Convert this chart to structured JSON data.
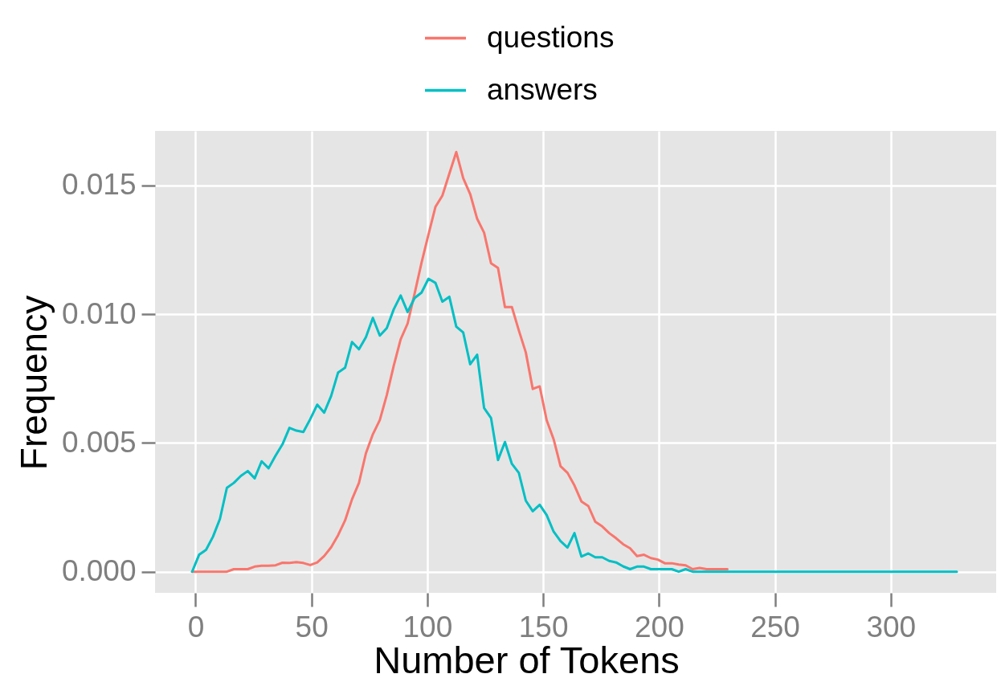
{
  "chart_data": {
    "type": "line",
    "xlabel": "Number of Tokens",
    "ylabel": "Frequency",
    "xlim": [
      -17.5,
      345.5
    ],
    "ylim": [
      -0.00082,
      0.01712
    ],
    "xticks": [
      0,
      50,
      100,
      150,
      200,
      250,
      300
    ],
    "yticks": [
      {
        "value": 0,
        "label": "0.000"
      },
      0.005,
      {
        "value": 0.01,
        "label": "0.010"
      },
      0.015
    ],
    "grid": true,
    "legend": "top",
    "series": [
      {
        "name": "questions",
        "color": "#f8766d",
        "x": [
          -1.5,
          1.5,
          4.5,
          7.5,
          10.5,
          13.5,
          16.5,
          19.5,
          22.5,
          25.5,
          28.5,
          31.5,
          34.5,
          37.5,
          40.5,
          43.5,
          46.5,
          49.5,
          52.5,
          55.5,
          58.5,
          61.5,
          64.5,
          67.5,
          70.5,
          73.5,
          76.5,
          79.5,
          82.5,
          85.5,
          88.5,
          91.5,
          94.5,
          97.5,
          100.5,
          103.5,
          106.5,
          109.5,
          112.5,
          115.5,
          118.5,
          121.5,
          124.5,
          127.5,
          130.5,
          133.5,
          136.5,
          139.5,
          142.5,
          145.5,
          148.5,
          151.5,
          154.5,
          157.5,
          160.5,
          163.5,
          166.5,
          169.5,
          172.5,
          175.5,
          178.5,
          181.5,
          184.5,
          187.5,
          190.5,
          193.5,
          196.5,
          199.5,
          202.5,
          205.5,
          208.5,
          211.5,
          214.5,
          217.5,
          220.5,
          223.5,
          226.5,
          229.5
        ],
        "values": [
          0,
          0,
          0,
          0,
          0,
          0,
          0.0001,
          0.0001,
          0.0001,
          0.0002,
          0.00023,
          0.00023,
          0.00025,
          0.00035,
          0.00034,
          0.00037,
          0.00034,
          0.00026,
          0.00036,
          0.00061,
          0.00095,
          0.00142,
          0.00199,
          0.00281,
          0.00345,
          0.0046,
          0.00534,
          0.00589,
          0.00686,
          0.008,
          0.00903,
          0.00964,
          0.0108,
          0.012,
          0.0131,
          0.01417,
          0.01461,
          0.01546,
          0.0163,
          0.01528,
          0.01467,
          0.01371,
          0.01317,
          0.01198,
          0.0118,
          0.01028,
          0.01028,
          0.00937,
          0.00852,
          0.0071,
          0.0072,
          0.00589,
          0.00515,
          0.0041,
          0.00384,
          0.00335,
          0.00273,
          0.00255,
          0.00194,
          0.00176,
          0.0015,
          0.0013,
          0.00107,
          0.00091,
          0.00061,
          0.00066,
          0.00053,
          0.00047,
          0.00033,
          0.00033,
          0.00028,
          0.00025,
          0.0001,
          0.00015,
          0.0001,
          0.0001,
          0.0001,
          0.0001
        ]
      },
      {
        "name": "answers",
        "color": "#00bfc4",
        "x": [
          -1.5,
          1.5,
          4.5,
          7.5,
          10.5,
          13.5,
          16.5,
          19.5,
          22.5,
          25.5,
          28.5,
          31.5,
          34.5,
          37.5,
          40.5,
          43.5,
          46.5,
          49.5,
          52.5,
          55.5,
          58.5,
          61.5,
          64.5,
          67.5,
          70.5,
          73.5,
          76.5,
          79.5,
          82.5,
          85.5,
          88.5,
          91.5,
          94.5,
          97.5,
          100.5,
          103.5,
          106.5,
          109.5,
          112.5,
          115.5,
          118.5,
          121.5,
          124.5,
          127.5,
          130.5,
          133.5,
          136.5,
          139.5,
          142.5,
          145.5,
          148.5,
          151.5,
          154.5,
          157.5,
          160.5,
          163.5,
          166.5,
          169.5,
          172.5,
          175.5,
          178.5,
          181.5,
          184.5,
          187.5,
          190.5,
          193.5,
          196.5,
          199.5,
          202.5,
          205.5,
          208.5,
          211.5,
          214.5,
          217.5,
          220.5,
          223.5,
          226.5,
          229.5,
          232.5,
          235.5,
          238.5,
          259.5,
          280.5,
          301.5,
          328.5
        ],
        "values": [
          0,
          0.00066,
          0.00085,
          0.00136,
          0.00205,
          0.00326,
          0.00345,
          0.00372,
          0.00391,
          0.00363,
          0.00429,
          0.00402,
          0.00451,
          0.00495,
          0.00559,
          0.00548,
          0.00543,
          0.00593,
          0.00649,
          0.00618,
          0.00683,
          0.00774,
          0.00792,
          0.00892,
          0.00864,
          0.00911,
          0.00986,
          0.00917,
          0.00946,
          0.01019,
          0.01073,
          0.01009,
          0.01063,
          0.01084,
          0.01138,
          0.01122,
          0.01049,
          0.01068,
          0.00952,
          0.00929,
          0.00806,
          0.00843,
          0.00636,
          0.00597,
          0.00434,
          0.00504,
          0.00419,
          0.00384,
          0.00276,
          0.00235,
          0.0026,
          0.0022,
          0.00156,
          0.00119,
          0.00094,
          0.0015,
          0.00059,
          0.00071,
          0.00056,
          0.00056,
          0.00042,
          0.00036,
          0.00021,
          0.0001,
          0.0002,
          0.0002,
          0.0001,
          0.0001,
          0.0001,
          0.0001,
          0,
          0.0001,
          0,
          0,
          0,
          0,
          0,
          0,
          0,
          0,
          0,
          0,
          0,
          0,
          0
        ]
      }
    ]
  }
}
